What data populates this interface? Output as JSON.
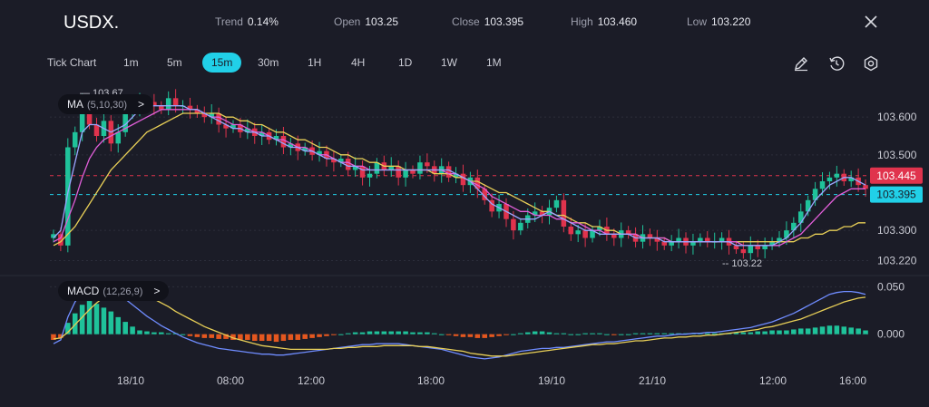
{
  "header": {
    "symbol": "USDX.",
    "trend_label": "Trend",
    "trend_value": "0.14%",
    "open_label": "Open",
    "open_value": "103.25",
    "close_label": "Close",
    "close_value": "103.395",
    "high_label": "High",
    "high_value": "103.460",
    "low_label": "Low",
    "low_value": "103.220"
  },
  "toolbar": {
    "chart_type": "Tick Chart",
    "timeframes": [
      "1m",
      "5m",
      "15m",
      "30m",
      "1H",
      "4H",
      "1D",
      "1W",
      "1M"
    ],
    "active_timeframe": "15m",
    "tools": [
      "pencil-icon",
      "clock-reset-icon",
      "settings-icon"
    ]
  },
  "ma_panel": {
    "label": "MA",
    "params": "(5,10,30)",
    "chevron": ">"
  },
  "macd_panel": {
    "label": "MACD",
    "params": "(12,26,9)",
    "chevron": ">"
  },
  "colors": {
    "up": "#1fc29a",
    "down": "#e0334d",
    "ma5": "#9aa6ff",
    "ma10": "#e15fd9",
    "ma30": "#e8cf57",
    "cyan": "#21d0e8",
    "hist_neg": "#e4571f"
  },
  "chart_data": [
    {
      "type": "candlestick",
      "title": "USDX.",
      "y_ticks": [
        "103.600",
        "103.500",
        "103.300",
        "103.220"
      ],
      "x_ticks": [
        "18/10",
        "08:00",
        "12:00",
        "18:00",
        "19/10",
        "21/10",
        "12:00",
        "16:00"
      ],
      "ylim": [
        103.19,
        103.67
      ],
      "high_marker": "103.67",
      "low_marker": "103.22",
      "price_line_red": "103.445",
      "price_line_cyan": "103.395",
      "close_series": [
        103.29,
        103.26,
        103.52,
        103.56,
        103.64,
        103.58,
        103.55,
        103.59,
        103.53,
        103.56,
        103.61,
        103.62,
        103.64,
        103.64,
        103.63,
        103.62,
        103.65,
        103.63,
        103.63,
        103.62,
        103.61,
        103.6,
        103.61,
        103.58,
        103.57,
        103.58,
        103.56,
        103.57,
        103.55,
        103.56,
        103.54,
        103.55,
        103.52,
        103.53,
        103.51,
        103.52,
        103.5,
        103.51,
        103.49,
        103.48,
        103.49,
        103.46,
        103.47,
        103.44,
        103.45,
        103.48,
        103.46,
        103.47,
        103.44,
        103.46,
        103.45,
        103.48,
        103.47,
        103.45,
        103.47,
        103.44,
        103.45,
        103.42,
        103.44,
        103.41,
        103.38,
        103.35,
        103.37,
        103.33,
        103.3,
        103.32,
        103.34,
        103.35,
        103.34,
        103.36,
        103.38,
        103.31,
        103.29,
        103.3,
        103.28,
        103.3,
        103.31,
        103.29,
        103.28,
        103.3,
        103.29,
        103.27,
        103.29,
        103.28,
        103.27,
        103.26,
        103.27,
        103.28,
        103.26,
        103.27,
        103.28,
        103.27,
        103.27,
        103.28,
        103.26,
        103.25,
        103.24,
        103.26,
        103.25,
        103.26,
        103.27,
        103.28,
        103.3,
        103.32,
        103.35,
        103.38,
        103.41,
        103.43,
        103.44,
        103.45,
        103.43,
        103.44,
        103.42,
        103.41
      ],
      "ma5": [
        103.28,
        103.3,
        103.4,
        103.48,
        103.56,
        103.58,
        103.58,
        103.57,
        103.56,
        103.57,
        103.58,
        103.6,
        103.62,
        103.63,
        103.63,
        103.63,
        103.63,
        103.63,
        103.63,
        103.62,
        103.62,
        103.61,
        103.6,
        103.59,
        103.58,
        103.57,
        103.57,
        103.56,
        103.56,
        103.55,
        103.55,
        103.54,
        103.53,
        103.52,
        103.52,
        103.51,
        103.51,
        103.5,
        103.49,
        103.49,
        103.48,
        103.47,
        103.47,
        103.46,
        103.46,
        103.46,
        103.46,
        103.46,
        103.46,
        103.46,
        103.46,
        103.46,
        103.46,
        103.46,
        103.46,
        103.46,
        103.45,
        103.44,
        103.43,
        103.41,
        103.39,
        103.37,
        103.36,
        103.35,
        103.34,
        103.33,
        103.33,
        103.33,
        103.34,
        103.35,
        103.34,
        103.33,
        103.32,
        103.31,
        103.3,
        103.3,
        103.29,
        103.29,
        103.29,
        103.29,
        103.29,
        103.28,
        103.28,
        103.28,
        103.28,
        103.27,
        103.27,
        103.27,
        103.27,
        103.27,
        103.27,
        103.27,
        103.27,
        103.27,
        103.27,
        103.26,
        103.26,
        103.26,
        103.26,
        103.26,
        103.26,
        103.27,
        103.28,
        103.3,
        103.32,
        103.35,
        103.38,
        103.4,
        103.42,
        103.43,
        103.44,
        103.44,
        103.43,
        103.42
      ],
      "ma10": [
        103.27,
        103.28,
        103.33,
        103.38,
        103.44,
        103.49,
        103.52,
        103.54,
        103.55,
        103.56,
        103.57,
        103.58,
        103.59,
        103.6,
        103.61,
        103.62,
        103.62,
        103.62,
        103.62,
        103.62,
        103.62,
        103.61,
        103.6,
        103.6,
        103.59,
        103.58,
        103.58,
        103.57,
        103.56,
        103.56,
        103.55,
        103.54,
        103.54,
        103.53,
        103.52,
        103.52,
        103.51,
        103.5,
        103.5,
        103.49,
        103.48,
        103.48,
        103.47,
        103.47,
        103.46,
        103.46,
        103.46,
        103.46,
        103.46,
        103.46,
        103.46,
        103.46,
        103.46,
        103.46,
        103.46,
        103.45,
        103.45,
        103.44,
        103.43,
        103.42,
        103.41,
        103.39,
        103.38,
        103.37,
        103.36,
        103.35,
        103.35,
        103.34,
        103.34,
        103.34,
        103.33,
        103.33,
        103.32,
        103.32,
        103.31,
        103.3,
        103.3,
        103.29,
        103.29,
        103.29,
        103.29,
        103.29,
        103.28,
        103.28,
        103.28,
        103.28,
        103.27,
        103.27,
        103.27,
        103.27,
        103.27,
        103.27,
        103.27,
        103.27,
        103.27,
        103.27,
        103.26,
        103.26,
        103.26,
        103.26,
        103.26,
        103.26,
        103.27,
        103.28,
        103.29,
        103.31,
        103.33,
        103.35,
        103.37,
        103.39,
        103.4,
        103.41,
        103.41,
        103.41
      ],
      "ma30": [
        103.26,
        103.27,
        103.29,
        103.31,
        103.34,
        103.37,
        103.4,
        103.43,
        103.46,
        103.48,
        103.5,
        103.52,
        103.54,
        103.56,
        103.57,
        103.58,
        103.59,
        103.6,
        103.61,
        103.61,
        103.61,
        103.61,
        103.61,
        103.61,
        103.6,
        103.6,
        103.59,
        103.59,
        103.58,
        103.58,
        103.57,
        103.56,
        103.56,
        103.55,
        103.54,
        103.54,
        103.53,
        103.52,
        103.52,
        103.51,
        103.5,
        103.5,
        103.49,
        103.49,
        103.48,
        103.48,
        103.47,
        103.47,
        103.47,
        103.46,
        103.46,
        103.46,
        103.46,
        103.45,
        103.45,
        103.45,
        103.44,
        103.44,
        103.43,
        103.43,
        103.42,
        103.41,
        103.4,
        103.4,
        103.39,
        103.38,
        103.37,
        103.36,
        103.35,
        103.35,
        103.34,
        103.34,
        103.33,
        103.32,
        103.32,
        103.31,
        103.31,
        103.3,
        103.3,
        103.29,
        103.29,
        103.29,
        103.28,
        103.28,
        103.28,
        103.28,
        103.27,
        103.27,
        103.27,
        103.27,
        103.27,
        103.27,
        103.27,
        103.27,
        103.27,
        103.27,
        103.27,
        103.27,
        103.27,
        103.27,
        103.27,
        103.27,
        103.27,
        103.27,
        103.28,
        103.28,
        103.29,
        103.29,
        103.3,
        103.3,
        103.31,
        103.31,
        103.32,
        103.32
      ]
    },
    {
      "type": "bar",
      "title": "MACD",
      "y_ticks": [
        "0.050",
        "0.000"
      ],
      "ylim": [
        -0.028,
        0.058
      ],
      "histogram": [
        -0.006,
        -0.004,
        0.012,
        0.022,
        0.031,
        0.035,
        0.032,
        0.028,
        0.024,
        0.018,
        0.013,
        0.008,
        0.004,
        0.003,
        0.002,
        0.002,
        0.001,
        0.001,
        0.0,
        -0.002,
        -0.003,
        -0.004,
        -0.004,
        -0.005,
        -0.005,
        -0.006,
        -0.006,
        -0.006,
        -0.007,
        -0.007,
        -0.007,
        -0.008,
        -0.007,
        -0.006,
        -0.006,
        -0.005,
        -0.004,
        -0.003,
        -0.002,
        -0.001,
        0.0,
        0.001,
        0.002,
        0.002,
        0.003,
        0.003,
        0.003,
        0.003,
        0.003,
        0.003,
        0.002,
        0.002,
        0.002,
        0.001,
        0.0,
        -0.001,
        -0.002,
        -0.003,
        -0.003,
        -0.004,
        -0.004,
        -0.003,
        -0.002,
        -0.001,
        0.0,
        0.001,
        0.002,
        0.003,
        0.003,
        0.002,
        0.001,
        0.001,
        0.0,
        0.0,
        0.001,
        0.001,
        0.001,
        0.0,
        -0.001,
        0.0,
        0.0,
        0.001,
        0.001,
        0.001,
        0.001,
        0.001,
        0.001,
        0.001,
        0.001,
        0.001,
        0.001,
        0.001,
        0.001,
        0.001,
        0.001,
        0.002,
        0.002,
        0.002,
        0.003,
        0.003,
        0.004,
        0.004,
        0.004,
        0.005,
        0.006,
        0.006,
        0.007,
        0.008,
        0.009,
        0.009,
        0.008,
        0.007,
        0.006,
        0.004
      ],
      "macd_line": [
        -0.01,
        -0.006,
        0.018,
        0.034,
        0.045,
        0.052,
        0.053,
        0.051,
        0.048,
        0.043,
        0.037,
        0.031,
        0.025,
        0.019,
        0.014,
        0.009,
        0.005,
        0.001,
        -0.003,
        -0.006,
        -0.009,
        -0.011,
        -0.013,
        -0.015,
        -0.016,
        -0.017,
        -0.018,
        -0.019,
        -0.02,
        -0.021,
        -0.021,
        -0.022,
        -0.022,
        -0.021,
        -0.02,
        -0.019,
        -0.018,
        -0.017,
        -0.016,
        -0.015,
        -0.014,
        -0.013,
        -0.012,
        -0.011,
        -0.011,
        -0.01,
        -0.01,
        -0.01,
        -0.01,
        -0.011,
        -0.012,
        -0.013,
        -0.014,
        -0.015,
        -0.016,
        -0.018,
        -0.02,
        -0.022,
        -0.024,
        -0.025,
        -0.026,
        -0.025,
        -0.024,
        -0.022,
        -0.02,
        -0.018,
        -0.017,
        -0.016,
        -0.015,
        -0.015,
        -0.014,
        -0.014,
        -0.013,
        -0.012,
        -0.011,
        -0.01,
        -0.009,
        -0.008,
        -0.008,
        -0.007,
        -0.006,
        -0.005,
        -0.004,
        -0.003,
        -0.002,
        -0.002,
        -0.001,
        0.0,
        0.0,
        0.001,
        0.001,
        0.002,
        0.002,
        0.003,
        0.004,
        0.005,
        0.006,
        0.007,
        0.009,
        0.011,
        0.013,
        0.016,
        0.019,
        0.022,
        0.026,
        0.03,
        0.034,
        0.038,
        0.042,
        0.044,
        0.045,
        0.045,
        0.044,
        0.042
      ],
      "signal_line": [
        -0.005,
        -0.004,
        0.002,
        0.01,
        0.018,
        0.026,
        0.033,
        0.039,
        0.043,
        0.046,
        0.047,
        0.046,
        0.044,
        0.041,
        0.037,
        0.033,
        0.029,
        0.024,
        0.02,
        0.016,
        0.012,
        0.008,
        0.005,
        0.002,
        -0.001,
        -0.004,
        -0.006,
        -0.008,
        -0.01,
        -0.012,
        -0.013,
        -0.014,
        -0.015,
        -0.016,
        -0.016,
        -0.016,
        -0.016,
        -0.016,
        -0.016,
        -0.015,
        -0.015,
        -0.014,
        -0.014,
        -0.013,
        -0.013,
        -0.013,
        -0.012,
        -0.012,
        -0.012,
        -0.012,
        -0.012,
        -0.013,
        -0.013,
        -0.014,
        -0.015,
        -0.016,
        -0.017,
        -0.018,
        -0.02,
        -0.021,
        -0.022,
        -0.023,
        -0.023,
        -0.023,
        -0.022,
        -0.021,
        -0.02,
        -0.019,
        -0.018,
        -0.017,
        -0.016,
        -0.015,
        -0.014,
        -0.013,
        -0.012,
        -0.011,
        -0.011,
        -0.01,
        -0.01,
        -0.009,
        -0.008,
        -0.007,
        -0.007,
        -0.006,
        -0.005,
        -0.004,
        -0.004,
        -0.003,
        -0.003,
        -0.002,
        -0.002,
        -0.001,
        -0.001,
        0.0,
        0.001,
        0.002,
        0.003,
        0.004,
        0.005,
        0.007,
        0.008,
        0.01,
        0.012,
        0.014,
        0.016,
        0.019,
        0.022,
        0.025,
        0.028,
        0.031,
        0.034,
        0.036,
        0.038,
        0.039
      ]
    }
  ]
}
